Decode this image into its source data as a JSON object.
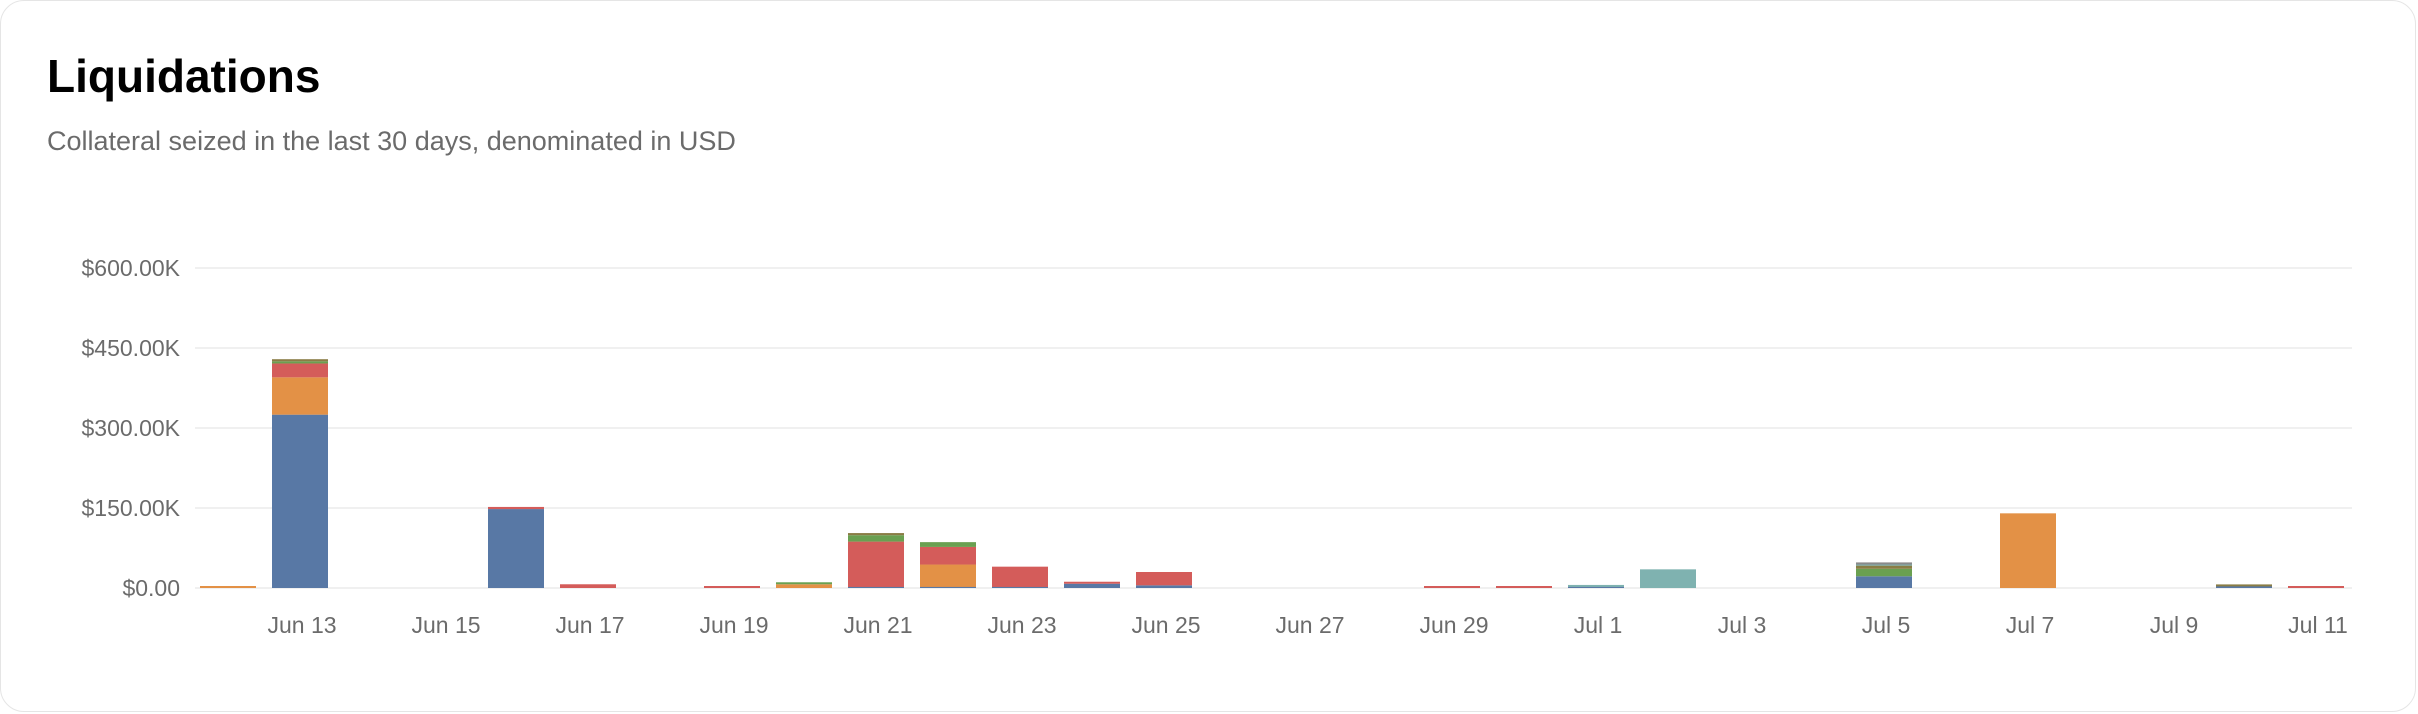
{
  "card": {
    "title": "Liquidations",
    "subtitle": "Collateral seized in the last 30 days, denominated in USD"
  },
  "colors": {
    "blue": "#5878a5",
    "orange": "#e39146",
    "red": "#d45c5a",
    "green": "#6aa051",
    "olive": "#8a7d45",
    "teal": "#7fb2b0",
    "gray": "#8a8a8a",
    "grid": "#ececec",
    "axis_text": "#6b6b6b"
  },
  "chart_data": {
    "type": "bar",
    "stacked": true,
    "title": "",
    "xlabel": "",
    "ylabel": "",
    "ylim": [
      0,
      600000
    ],
    "y_ticks": [
      0,
      150000,
      300000,
      450000,
      600000
    ],
    "y_tick_labels": [
      "$0.00",
      "$150.00K",
      "$300.00K",
      "$450.00K",
      "$600.00K"
    ],
    "x_tick_labels": [
      "Jun 13",
      "Jun 15",
      "Jun 17",
      "Jun 19",
      "Jun 21",
      "Jun 23",
      "Jun 25",
      "Jun 27",
      "Jun 29",
      "Jul 1",
      "Jul 3",
      "Jul 5",
      "Jul 7",
      "Jul 9",
      "Jul 11"
    ],
    "grid": true,
    "legend": "none",
    "categories": [
      "Jun 12",
      "Jun 13",
      "Jun 14",
      "Jun 15",
      "Jun 16",
      "Jun 17",
      "Jun 18",
      "Jun 19",
      "Jun 20",
      "Jun 21",
      "Jun 22",
      "Jun 23",
      "Jun 24",
      "Jun 25",
      "Jun 26",
      "Jun 27",
      "Jun 28",
      "Jun 29",
      "Jun 30",
      "Jul 1",
      "Jul 2",
      "Jul 3",
      "Jul 4",
      "Jul 5",
      "Jul 6",
      "Jul 7",
      "Jul 8",
      "Jul 9",
      "Jul 10",
      "Jul 11"
    ],
    "series": [
      {
        "color": "blue",
        "values": [
          0,
          325000,
          0,
          0,
          148000,
          0,
          0,
          0,
          0,
          2000,
          2000,
          2000,
          8000,
          5000,
          0,
          0,
          0,
          0,
          0,
          2000,
          0,
          0,
          0,
          22000,
          0,
          0,
          0,
          0,
          3000,
          0
        ]
      },
      {
        "color": "orange",
        "values": [
          2000,
          70000,
          0,
          0,
          0,
          0,
          0,
          0,
          7000,
          0,
          42000,
          0,
          0,
          0,
          0,
          0,
          0,
          0,
          0,
          0,
          0,
          0,
          0,
          0,
          0,
          140000,
          0,
          0,
          0,
          0
        ]
      },
      {
        "color": "red",
        "values": [
          0,
          26000,
          0,
          0,
          4000,
          7000,
          0,
          1000,
          0,
          85000,
          33000,
          38000,
          2000,
          25000,
          0,
          0,
          0,
          1000,
          2000,
          0,
          0,
          0,
          0,
          0,
          0,
          0,
          0,
          0,
          0,
          3000
        ]
      },
      {
        "color": "green",
        "values": [
          0,
          4000,
          0,
          0,
          0,
          0,
          0,
          0,
          2000,
          12000,
          9000,
          0,
          0,
          0,
          0,
          0,
          0,
          0,
          0,
          0,
          0,
          0,
          0,
          14000,
          0,
          0,
          0,
          0,
          0,
          0
        ]
      },
      {
        "color": "olive",
        "values": [
          0,
          4000,
          0,
          0,
          0,
          0,
          0,
          0,
          0,
          4000,
          0,
          0,
          0,
          0,
          0,
          0,
          0,
          0,
          0,
          0,
          0,
          0,
          0,
          6000,
          0,
          0,
          0,
          0,
          2000,
          0
        ]
      },
      {
        "color": "teal",
        "values": [
          0,
          0,
          0,
          0,
          0,
          0,
          0,
          0,
          0,
          0,
          0,
          0,
          0,
          0,
          0,
          0,
          0,
          0,
          0,
          2000,
          35000,
          0,
          0,
          2000,
          0,
          0,
          0,
          0,
          0,
          0
        ]
      },
      {
        "color": "gray",
        "values": [
          0,
          0,
          0,
          0,
          0,
          0,
          0,
          0,
          0,
          0,
          0,
          0,
          0,
          0,
          0,
          0,
          0,
          0,
          0,
          0,
          0,
          0,
          0,
          4000,
          0,
          0,
          0,
          0,
          0,
          0
        ]
      }
    ]
  }
}
